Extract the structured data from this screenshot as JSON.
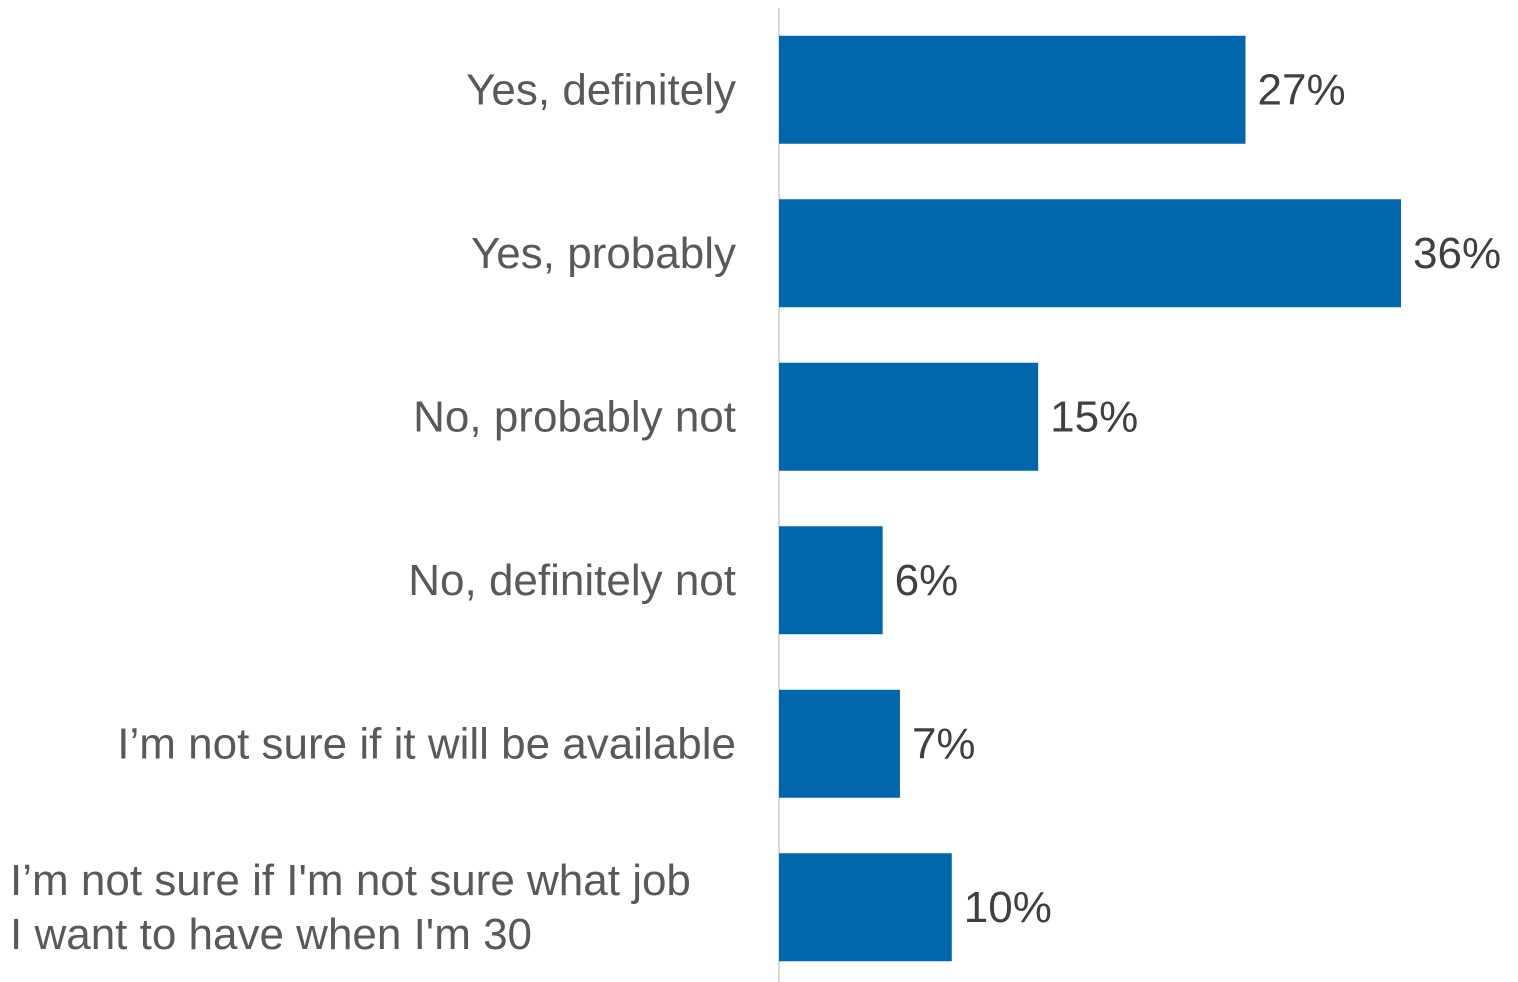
{
  "chart_data": {
    "type": "bar",
    "orientation": "horizontal",
    "title": "",
    "xlabel": "",
    "ylabel": "",
    "categories": [
      [
        "Yes, definitely"
      ],
      [
        "Yes, probably"
      ],
      [
        "No, probably not"
      ],
      [
        "No, definitely not"
      ],
      [
        "I’m not sure if it will be available"
      ],
      [
        "I’m not sure if I'm not sure what job",
        "I want to have when I'm 30"
      ]
    ],
    "values": [
      27,
      36,
      15,
      6,
      7,
      10
    ],
    "value_labels": [
      "27%",
      "36%",
      "15%",
      "6%",
      "7%",
      "10%"
    ],
    "xlim": [
      0,
      36
    ],
    "grid": false,
    "legend": "none",
    "colors": {
      "bar": "#0067AC",
      "axis": "#D9D9D9",
      "category_text": "#595959",
      "value_text": "#404040"
    }
  }
}
